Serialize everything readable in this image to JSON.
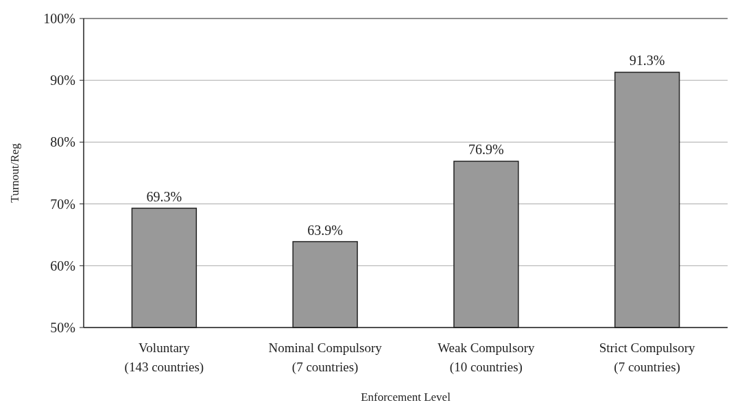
{
  "chart_data": {
    "type": "bar",
    "categories": [
      "Voluntary\n(143 countries)",
      "Nominal Compulsory\n(7 countries)",
      "Weak Compulsory\n(10 countries)",
      "Strict Compulsory\n(7 countries)"
    ],
    "values": [
      69.3,
      63.9,
      76.9,
      91.3
    ],
    "value_labels": [
      "69.3%",
      "63.9%",
      "76.9%",
      "91.3%"
    ],
    "color": "#999999",
    "xlabel": "Enforcement Level",
    "ylabel": "Turnout/Reg",
    "ylim": [
      50,
      100
    ],
    "yticks": [
      {
        "value": 50,
        "label": "50%"
      },
      {
        "value": 60,
        "label": "60%"
      },
      {
        "value": 70,
        "label": "70%"
      },
      {
        "value": 80,
        "label": "80%"
      },
      {
        "value": 90,
        "label": "90%"
      },
      {
        "value": 100,
        "label": "100%"
      }
    ],
    "grid": "y"
  }
}
